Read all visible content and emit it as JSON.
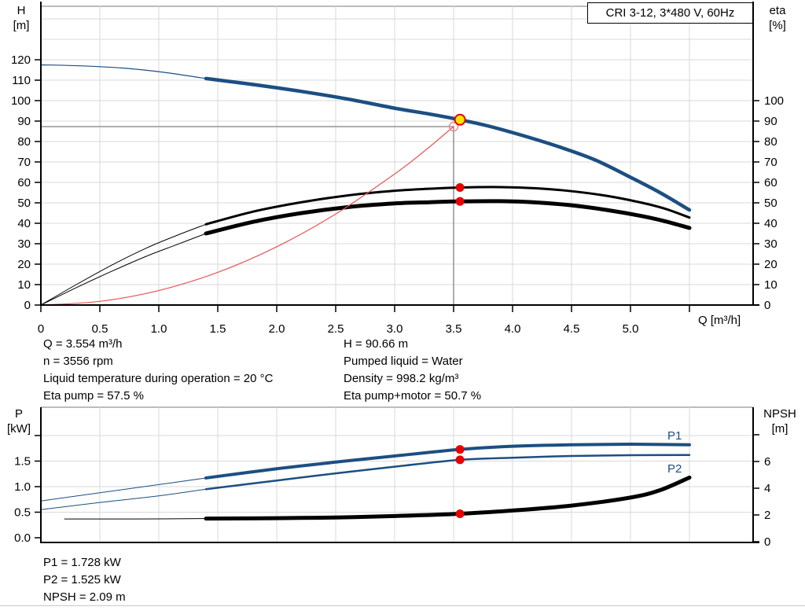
{
  "title_box": {
    "label": "CRI 3-12, 3*480 V, 60Hz"
  },
  "colors": {
    "blue": "#1c4f82",
    "black": "#000000",
    "red": "#e60000",
    "light_red": "#f08a8a",
    "system_red": "#e85555",
    "yellow": "#ffe500",
    "grid": "#d9d9d9",
    "border_gray": "#a6a6a6",
    "crosshair": "#8a8a8a",
    "axis": "#000000"
  },
  "top_chart": {
    "left_axis": {
      "line1": "H",
      "line2": "[m]"
    },
    "right_axis": {
      "line1": "eta",
      "line2": "[%]"
    },
    "x_axis_label": "Q [m³/h]",
    "info_left": [
      "Q = 3.554 m³/h",
      "n = 3556 rpm",
      "Liquid temperature during operation = 20 °C",
      "Eta pump = 57.5 %"
    ],
    "info_right": [
      "H = 90.66 m",
      "Pumped liquid = Water",
      "Density = 998.2 kg/m³",
      "Eta pump+motor = 50.7 %"
    ]
  },
  "bottom_chart": {
    "left_axis": {
      "line1": "P",
      "line2": "[kW]"
    },
    "right_axis": {
      "line1": "NPSH",
      "line2": "[m]"
    },
    "curve_labels": {
      "p1": "P1",
      "p2": "P2"
    },
    "info": [
      "P1 = 1.728 kW",
      "P2 = 1.525 kW",
      "NPSH = 2.09 m"
    ]
  },
  "chart_data": [
    {
      "id": "hq-chart",
      "type": "line",
      "title": "CRI 3-12, 3*480 V, 60Hz",
      "xlabel": "Q [m³/h]",
      "ylabel_left": "H [m]",
      "ylabel_right": "eta [%]",
      "x_range": [
        0,
        6.04
      ],
      "left_range": [
        0,
        146
      ],
      "right_range": [
        0,
        146
      ],
      "grid": {
        "x_q": [
          0.5,
          1.0,
          1.5,
          2.0,
          2.5,
          3.0,
          3.5,
          4.0,
          4.5,
          5.0,
          5.5
        ],
        "left_units": [
          10,
          20,
          30,
          40,
          50,
          60,
          70,
          80,
          90,
          100,
          110,
          120,
          130,
          140
        ]
      },
      "ticks": {
        "x": [
          {
            "q": 0,
            "label": "0"
          },
          {
            "q": 0.5,
            "label": "0.5"
          },
          {
            "q": 1.0,
            "label": "1.0"
          },
          {
            "q": 1.5,
            "label": "1.5"
          },
          {
            "q": 2.0,
            "label": "2.0"
          },
          {
            "q": 2.5,
            "label": "2.5"
          },
          {
            "q": 3.0,
            "label": "3.0"
          },
          {
            "q": 3.5,
            "label": "3.5"
          },
          {
            "q": 4.0,
            "label": "4.0"
          },
          {
            "q": 4.5,
            "label": "4.5"
          },
          {
            "q": 5.0,
            "label": "5.0"
          },
          {
            "q": 5.5,
            "label": ""
          }
        ],
        "left": [
          {
            "v": 0,
            "label": "0"
          },
          {
            "v": 10,
            "label": "10"
          },
          {
            "v": 20,
            "label": "20"
          },
          {
            "v": 30,
            "label": "30"
          },
          {
            "v": 40,
            "label": "40"
          },
          {
            "v": 50,
            "label": "50"
          },
          {
            "v": 60,
            "label": "60"
          },
          {
            "v": 70,
            "label": "70"
          },
          {
            "v": 80,
            "label": "80"
          },
          {
            "v": 90,
            "label": "90"
          },
          {
            "v": 100,
            "label": "100"
          },
          {
            "v": 110,
            "label": "110"
          },
          {
            "v": 120,
            "label": "120"
          }
        ],
        "right": [
          {
            "v": 0,
            "label": "0"
          },
          {
            "v": 10,
            "label": "10"
          },
          {
            "v": 20,
            "label": "20"
          },
          {
            "v": 30,
            "label": "30"
          },
          {
            "v": 40,
            "label": "40"
          },
          {
            "v": 50,
            "label": "50"
          },
          {
            "v": 60,
            "label": "60"
          },
          {
            "v": 70,
            "label": "70"
          },
          {
            "v": 80,
            "label": "80"
          },
          {
            "v": 90,
            "label": "90"
          },
          {
            "v": 100,
            "label": "100"
          }
        ]
      },
      "crosshair": {
        "q": 3.5,
        "scale": "left",
        "v": 87.3
      },
      "series": [
        {
          "name": "h-curve-preview",
          "color": "blue",
          "width": 1.2,
          "scale": "left",
          "points": [
            [
              0,
              117.5
            ],
            [
              0.35,
              117.0
            ],
            [
              0.7,
              115.9
            ],
            [
              1.05,
              113.8
            ],
            [
              1.4,
              110.8
            ]
          ]
        },
        {
          "name": "h-curve",
          "color": "blue",
          "width": 4.5,
          "scale": "left",
          "points": [
            [
              1.4,
              110.8
            ],
            [
              1.8,
              107.9
            ],
            [
              2.2,
              104.6
            ],
            [
              2.6,
              100.8
            ],
            [
              3.0,
              96.3
            ],
            [
              3.3,
              93.4
            ],
            [
              3.554,
              90.66
            ],
            [
              3.8,
              87.5
            ],
            [
              4.1,
              82.7
            ],
            [
              4.4,
              77.3
            ],
            [
              4.7,
              71.0
            ],
            [
              5.0,
              62.5
            ],
            [
              5.25,
              55.0
            ],
            [
              5.5,
              46.5
            ]
          ]
        },
        {
          "name": "eta-pump-preview",
          "color": "black",
          "width": 1,
          "scale": "right",
          "points": [
            [
              0,
              0
            ],
            [
              0.3,
              10
            ],
            [
              0.6,
              19.5
            ],
            [
              0.9,
              28
            ],
            [
              1.15,
              34
            ],
            [
              1.4,
              39.5
            ]
          ]
        },
        {
          "name": "eta-pump-curve",
          "color": "black",
          "width": 3,
          "scale": "right",
          "points": [
            [
              1.4,
              39.5
            ],
            [
              1.8,
              45.7
            ],
            [
              2.2,
              50.2
            ],
            [
              2.6,
              53.6
            ],
            [
              3.0,
              55.9
            ],
            [
              3.3,
              56.9
            ],
            [
              3.554,
              57.5
            ],
            [
              3.9,
              57.7
            ],
            [
              4.2,
              57.1
            ],
            [
              4.5,
              55.7
            ],
            [
              4.8,
              53.4
            ],
            [
              5.1,
              50.0
            ],
            [
              5.3,
              47.0
            ],
            [
              5.5,
              42.8
            ]
          ]
        },
        {
          "name": "eta-pump-motor-preview",
          "color": "black",
          "width": 1,
          "scale": "right",
          "points": [
            [
              0,
              0
            ],
            [
              0.3,
              8.5
            ],
            [
              0.6,
              16.5
            ],
            [
              0.9,
              24
            ],
            [
              1.15,
              29.5
            ],
            [
              1.4,
              35
            ]
          ]
        },
        {
          "name": "eta-pump-motor-curve",
          "color": "black",
          "width": 5,
          "scale": "right",
          "points": [
            [
              1.4,
              35
            ],
            [
              1.8,
              40.7
            ],
            [
              2.2,
              44.9
            ],
            [
              2.6,
              47.9
            ],
            [
              3.0,
              49.7
            ],
            [
              3.3,
              50.3
            ],
            [
              3.554,
              50.7
            ],
            [
              3.9,
              50.8
            ],
            [
              4.2,
              50.2
            ],
            [
              4.5,
              48.8
            ],
            [
              4.8,
              46.5
            ],
            [
              5.1,
              43.5
            ],
            [
              5.3,
              40.9
            ],
            [
              5.5,
              37.7
            ]
          ]
        },
        {
          "name": "system-curve",
          "color": "system_red",
          "width": 1.2,
          "scale": "left",
          "points": [
            [
              0,
              0
            ],
            [
              0.5,
              1.8
            ],
            [
              1.0,
              7.1
            ],
            [
              1.5,
              16.0
            ],
            [
              2.0,
              28.5
            ],
            [
              2.5,
              44.5
            ],
            [
              3.0,
              64.1
            ],
            [
              3.25,
              75.2
            ],
            [
              3.5,
              87.3
            ]
          ]
        }
      ],
      "markers": [
        {
          "name": "crosshair-point-marker",
          "kind": "hollow",
          "q": 3.5,
          "scale": "left",
          "v": 87.3
        },
        {
          "name": "duty-point-marker",
          "kind": "duty",
          "q": 3.554,
          "scale": "left",
          "v": 90.66
        },
        {
          "name": "eta-pump-operating-dot",
          "kind": "dot",
          "q": 3.554,
          "scale": "right",
          "v": 57.5
        },
        {
          "name": "eta-pump-motor-operating-dot",
          "kind": "dot",
          "q": 3.554,
          "scale": "right",
          "v": 50.7
        }
      ]
    },
    {
      "id": "power-chart",
      "type": "line",
      "xlabel": "Q [m³/h]",
      "ylabel_left": "P [kW]",
      "ylabel_right": "NPSH [m]",
      "x_range": [
        0,
        6.04
      ],
      "left_range": [
        0,
        2.6
      ],
      "right_range": [
        0,
        10.1
      ],
      "grid": {
        "x_q": [
          0.5,
          1.0,
          1.5,
          2.0,
          2.5,
          3.0,
          3.5,
          4.0,
          4.5,
          5.0,
          5.5
        ],
        "left_units": [
          0.5,
          1.0,
          1.5,
          2.0
        ]
      },
      "ticks": {
        "x": [],
        "left": [
          {
            "v": 0,
            "label": "0.0"
          },
          {
            "v": 0.5,
            "label": "0.5"
          },
          {
            "v": 1.0,
            "label": "1.0"
          },
          {
            "v": 1.5,
            "label": "1.5"
          },
          {
            "v": 2.0,
            "label": ""
          }
        ],
        "right": [
          {
            "v": 0,
            "label": "0"
          },
          {
            "v": 2,
            "label": "2"
          },
          {
            "v": 4,
            "label": "4"
          },
          {
            "v": 6,
            "label": "6"
          },
          {
            "v": 8,
            "label": ""
          }
        ]
      },
      "series": [
        {
          "name": "p1-preview",
          "color": "blue",
          "width": 1,
          "scale": "left",
          "points": [
            [
              0,
              0.72
            ],
            [
              0.5,
              0.88
            ],
            [
              1.0,
              1.04
            ],
            [
              1.4,
              1.17
            ]
          ]
        },
        {
          "name": "p1-curve",
          "color": "blue",
          "width": 4,
          "scale": "left",
          "points": [
            [
              1.4,
              1.17
            ],
            [
              2.0,
              1.35
            ],
            [
              2.5,
              1.48
            ],
            [
              3.0,
              1.6
            ],
            [
              3.554,
              1.728
            ],
            [
              4.0,
              1.79
            ],
            [
              4.5,
              1.82
            ],
            [
              5.0,
              1.83
            ],
            [
              5.5,
              1.82
            ]
          ]
        },
        {
          "name": "p2-preview",
          "color": "blue",
          "width": 1,
          "scale": "left",
          "points": [
            [
              0,
              0.55
            ],
            [
              0.5,
              0.69
            ],
            [
              1.0,
              0.82
            ],
            [
              1.4,
              0.95
            ]
          ]
        },
        {
          "name": "p2-curve",
          "color": "blue",
          "width": 2.5,
          "scale": "left",
          "points": [
            [
              1.4,
              0.95
            ],
            [
              2.0,
              1.12
            ],
            [
              2.5,
              1.26
            ],
            [
              3.0,
              1.39
            ],
            [
              3.554,
              1.525
            ],
            [
              4.0,
              1.565
            ],
            [
              4.5,
              1.6
            ],
            [
              5.0,
              1.615
            ],
            [
              5.5,
              1.62
            ]
          ]
        },
        {
          "name": "npsh-preview",
          "color": "black",
          "width": 1,
          "scale": "right",
          "points": [
            [
              0.2,
              1.7
            ],
            [
              0.8,
              1.7
            ],
            [
              1.4,
              1.73
            ]
          ]
        },
        {
          "name": "npsh-curve",
          "color": "black",
          "width": 5,
          "scale": "right",
          "points": [
            [
              1.4,
              1.73
            ],
            [
              2.0,
              1.76
            ],
            [
              2.5,
              1.81
            ],
            [
              3.0,
              1.92
            ],
            [
              3.554,
              2.09
            ],
            [
              4.0,
              2.33
            ],
            [
              4.5,
              2.7
            ],
            [
              5.0,
              3.3
            ],
            [
              5.25,
              3.85
            ],
            [
              5.5,
              4.8
            ]
          ]
        }
      ],
      "markers": [
        {
          "name": "p1-operating-dot",
          "kind": "dot",
          "q": 3.554,
          "scale": "left",
          "v": 1.728
        },
        {
          "name": "p2-operating-dot",
          "kind": "dot",
          "q": 3.554,
          "scale": "left",
          "v": 1.525
        },
        {
          "name": "npsh-operating-dot",
          "kind": "dot",
          "q": 3.554,
          "scale": "right",
          "v": 2.09
        }
      ]
    }
  ]
}
